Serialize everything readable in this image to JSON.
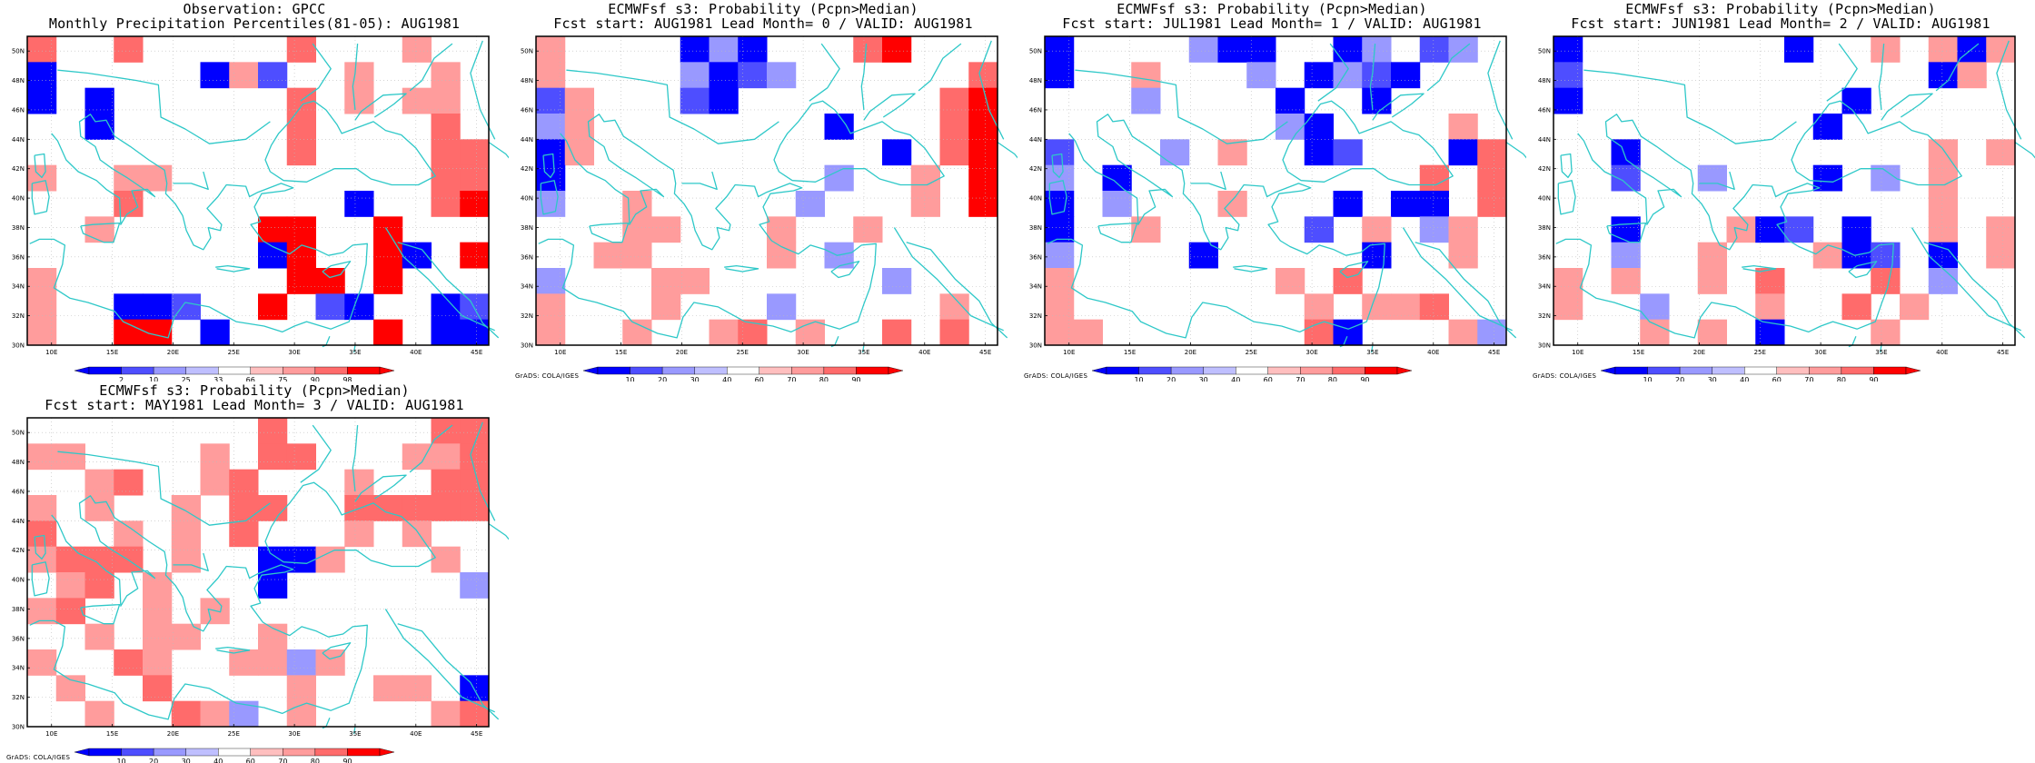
{
  "map": {
    "lon_ticks": [
      "10E",
      "15E",
      "20E",
      "25E",
      "30E",
      "35E",
      "40E",
      "45E"
    ],
    "lat_ticks": [
      "30N",
      "32N",
      "34N",
      "36N",
      "38N",
      "40N",
      "42N",
      "44N",
      "46N",
      "48N",
      "50N"
    ],
    "credit": "GrADS: COLA/IGES",
    "colors": {
      "-3": "#0000ff",
      "-2": "#4e4eff",
      "-1": "#9999ff",
      "-0.5": "#bfbfff",
      "0": "#ffffff",
      "0.5": "#ffbfbf",
      "1": "#ff9c9c",
      "2": "#ff6b6b",
      "3": "#ff0000",
      "coast": "#2ec8c8",
      "grid": "#bbbbbb"
    }
  },
  "panels": [
    {
      "title1": "Observation: GPCC",
      "title2": "Monthly Precipitation Percentiles(81-05): AUG1981",
      "colorbar": [
        "2",
        "10",
        "25",
        "33",
        "66",
        "75",
        "90",
        "98"
      ],
      "show_credit": false,
      "grid": [
        "2..2.....2...1..",
        "-.....-1-..1..1.",
        "-.-......2.1.11.",
        "..-......2....2.",
        ".........2....22",
        "1..11.........22",
        "...2.......-..23",
        "..1.....33..3...",
        "........-3..3-.3",
        "1........33.3...",
        "1..---..3.--..--",
        "1..33.-.....3.--"
      ]
    },
    {
      "title1": "ECMWFsf s3: Probability (Pcpn>Median)",
      "title2": "Fcst start: AUG1981  Lead Month= 0 / VALID: AUG1981",
      "colorbar": [
        "10",
        "20",
        "30",
        "40",
        "60",
        "70",
        "80",
        "90"
      ],
      "show_credit": true,
      "grid": [
        "1....---...23...",
        "1....----......2",
        "-1...--.......23",
        "-1........-...23",
        "-1..........-.23",
        "-.........-..1.3",
        "-..1.....-...1.3",
        "...11...1..1....",
        "..11....1.-.....",
        "-...11......-...",
        "1...1...-.....1.",
        "1..1..12.1..2.2."
      ]
    },
    {
      "title1": "ECMWFsf s3: Probability (Pcpn>Median)",
      "title2": "Fcst start: JUL1981  Lead Month= 1 / VALID: AUG1981",
      "colorbar": [
        "10",
        "20",
        "30",
        "40",
        "60",
        "70",
        "80",
        "90"
      ],
      "show_credit": true,
      "grid": [
        "-....---..--.--.",
        "-..1...-.----...",
        "...-....-..-....",
        "........--....1.",
        "-...-.1..--...-2",
        "-.-..........2.2",
        "-.-...1...-.--.2",
        "-..1.....-.1.-1.",
        "-....-.....-..1.",
        "1.......1.2.....",
        "1........1.112..",
        "11.......2-...1-"
      ]
    },
    {
      "title1": "ECMWFsf s3: Probability (Pcpn>Median)",
      "title2": "Fcst start: JUN1981  Lead Month= 2 / VALID: AUG1981",
      "colorbar": [
        "10",
        "20",
        "30",
        "40",
        "60",
        "70",
        "80",
        "90"
      ],
      "show_credit": true,
      "grid": [
        "-.......-..1.1-1",
        "-............-1.",
        "-.........-.....",
        ".........-......",
        "..-..........1.1",
        "..-..-...-.-.1..",
        ".............1..",
        "..-...1--.-..1.1",
        "..-..1...1--.-.1",
        "1.1..1.2...2.-..",
        "1..-...1..2.1...",
        "...1.1.-...1....."
      ]
    },
    {
      "title1": "ECMWFsf s3: Probability (Pcpn>Median)",
      "title2": "Fcst start: MAY1981  Lead Month= 3 / VALID: AUG1981",
      "colorbar": [
        "10",
        "20",
        "30",
        "40",
        "60",
        "70",
        "80",
        "90"
      ],
      "show_credit": true,
      "grid": [
        "........2.....22",
        "11....1.22...112",
        "..12..12...1..22",
        "1.1..1.22..22222",
        "2..1.1.2...1.1..",
        "1222.1..--1...1.",
        ".12.1...-......-",
        "12..1.1.........",
        "..1.11..1.......",
        "1..21..11-1.....",
        ".1..2....1..11.-",
        "..1..21-.1....12"
      ]
    }
  ]
}
